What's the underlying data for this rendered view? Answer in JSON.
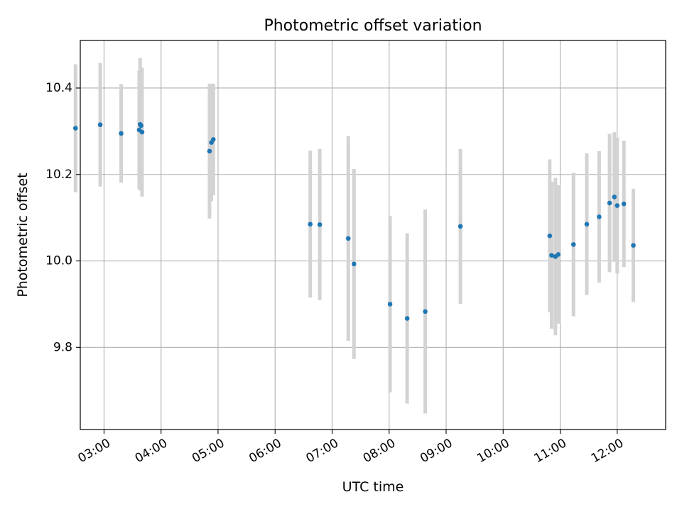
{
  "chart_data": {
    "type": "scatter",
    "title": "Photometric offset variation",
    "xlabel": "UTC time",
    "ylabel": "Photometric offset",
    "x_scale": "time",
    "xlim": [
      "02:35",
      "12:51"
    ],
    "ylim": [
      9.61,
      10.51
    ],
    "x_ticks": [
      "03:00",
      "04:00",
      "05:00",
      "06:00",
      "07:00",
      "08:00",
      "09:00",
      "10:00",
      "11:00",
      "12:00"
    ],
    "y_ticks": [
      "9.8",
      "10.0",
      "10.2",
      "10.4"
    ],
    "grid": true,
    "legend": "none",
    "colors": {
      "points": "#1f77b4",
      "error_bars": "#d3d3d3",
      "grid": "#b0b0b0"
    },
    "points": [
      {
        "x": "02:30",
        "y": 10.307,
        "err": 0.148
      },
      {
        "x": "02:56",
        "y": 10.315,
        "err": 0.143
      },
      {
        "x": "03:18",
        "y": 10.295,
        "err": 0.114
      },
      {
        "x": "03:37",
        "y": 10.303,
        "err": 0.137
      },
      {
        "x": "03:38",
        "y": 10.316,
        "err": 0.153
      },
      {
        "x": "03:39",
        "y": 10.313,
        "err": 0.13
      },
      {
        "x": "03:40",
        "y": 10.298,
        "err": 0.149
      },
      {
        "x": "04:51",
        "y": 10.254,
        "err": 0.156
      },
      {
        "x": "04:53",
        "y": 10.274,
        "err": 0.136
      },
      {
        "x": "04:55",
        "y": 10.281,
        "err": 0.129
      },
      {
        "x": "06:37",
        "y": 10.085,
        "err": 0.17
      },
      {
        "x": "06:47",
        "y": 10.084,
        "err": 0.175
      },
      {
        "x": "07:17",
        "y": 10.052,
        "err": 0.237
      },
      {
        "x": "07:23",
        "y": 9.993,
        "err": 0.22
      },
      {
        "x": "08:01",
        "y": 9.9,
        "err": 0.204
      },
      {
        "x": "08:19",
        "y": 9.867,
        "err": 0.197
      },
      {
        "x": "08:38",
        "y": 9.883,
        "err": 0.236
      },
      {
        "x": "09:15",
        "y": 10.08,
        "err": 0.179
      },
      {
        "x": "10:49",
        "y": 10.058,
        "err": 0.177
      },
      {
        "x": "10:51",
        "y": 10.013,
        "err": 0.17
      },
      {
        "x": "10:55",
        "y": 10.01,
        "err": 0.182
      },
      {
        "x": "10:58",
        "y": 10.015,
        "err": 0.16
      },
      {
        "x": "11:14",
        "y": 10.038,
        "err": 0.166
      },
      {
        "x": "11:28",
        "y": 10.085,
        "err": 0.164
      },
      {
        "x": "11:41",
        "y": 10.102,
        "err": 0.152
      },
      {
        "x": "11:52",
        "y": 10.134,
        "err": 0.16
      },
      {
        "x": "11:57",
        "y": 10.148,
        "err": 0.15
      },
      {
        "x": "12:00",
        "y": 10.128,
        "err": 0.157
      },
      {
        "x": "12:07",
        "y": 10.132,
        "err": 0.146
      },
      {
        "x": "12:17",
        "y": 10.036,
        "err": 0.131
      }
    ]
  }
}
